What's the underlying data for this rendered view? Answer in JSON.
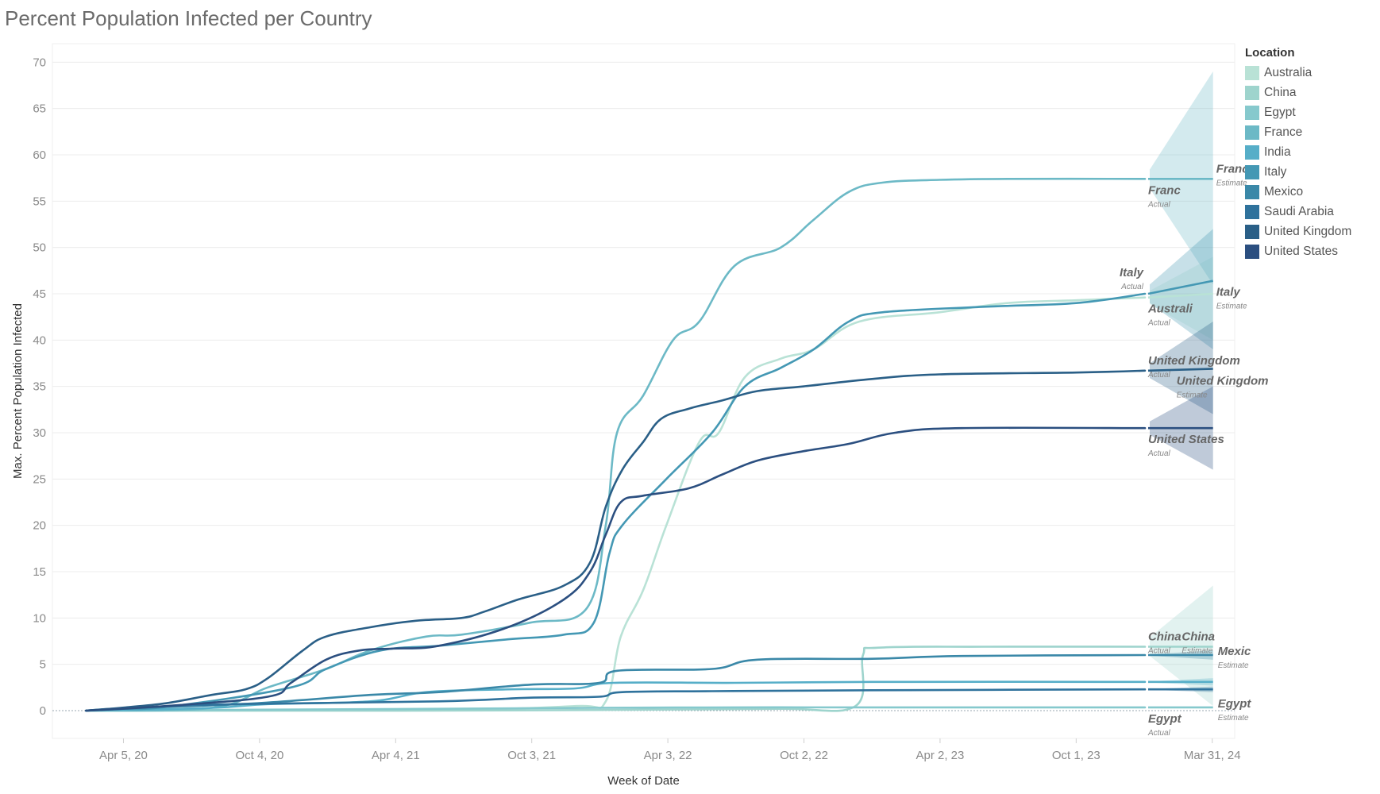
{
  "chart_data": {
    "type": "line",
    "title": "Percent Population Infected per Country",
    "xlabel": "Week of Date",
    "ylabel": "Max. Percent Population Infected",
    "ylim": [
      -3,
      72
    ],
    "y_ticks": [
      0,
      5,
      10,
      15,
      20,
      25,
      30,
      35,
      40,
      45,
      50,
      55,
      60,
      65,
      70
    ],
    "x_range": [
      "2020-01-01",
      "2024-04-30"
    ],
    "x_ticks": [
      {
        "date": "2020-04-05",
        "label": "Apr 5, 20"
      },
      {
        "date": "2020-10-04",
        "label": "Oct 4, 20"
      },
      {
        "date": "2021-04-04",
        "label": "Apr 4, 21"
      },
      {
        "date": "2021-10-03",
        "label": "Oct 3, 21"
      },
      {
        "date": "2022-04-03",
        "label": "Apr 3, 22"
      },
      {
        "date": "2022-10-02",
        "label": "Oct 2, 22"
      },
      {
        "date": "2023-04-02",
        "label": "Apr 2, 23"
      },
      {
        "date": "2023-10-01",
        "label": "Oct 1, 23"
      },
      {
        "date": "2024-03-31",
        "label": "Mar 31, 24"
      }
    ],
    "grid": true,
    "legend": {
      "title": "Location",
      "position": "right",
      "items": [
        {
          "name": "Australia",
          "color": "#b9e2d6"
        },
        {
          "name": "China",
          "color": "#9ed4cd"
        },
        {
          "name": "Egypt",
          "color": "#86c9cd"
        },
        {
          "name": "France",
          "color": "#6cb9c6"
        },
        {
          "name": "India",
          "color": "#56aec8"
        },
        {
          "name": "Italy",
          "color": "#4498b4"
        },
        {
          "name": "Mexico",
          "color": "#3a88a8"
        },
        {
          "name": "Saudi Arabia",
          "color": "#2f729c"
        },
        {
          "name": "United Kingdom",
          "color": "#2a5f87"
        },
        {
          "name": "United States",
          "color": "#2b4f80"
        }
      ]
    },
    "series": [
      {
        "name": "Australia",
        "color": "#b9e2d6",
        "points": [
          [
            "2020-02-15",
            0
          ],
          [
            "2021-06-01",
            0.1
          ],
          [
            "2021-12-01",
            0.5
          ],
          [
            "2022-01-10",
            1
          ],
          [
            "2022-01-30",
            8
          ],
          [
            "2022-03-01",
            13
          ],
          [
            "2022-04-01",
            20
          ],
          [
            "2022-05-15",
            29
          ],
          [
            "2022-06-10",
            30
          ],
          [
            "2022-07-15",
            36
          ],
          [
            "2022-09-01",
            38
          ],
          [
            "2022-10-15",
            39
          ],
          [
            "2022-12-15",
            42
          ],
          [
            "2023-04-01",
            43
          ],
          [
            "2023-07-01",
            44
          ],
          [
            "2023-10-01",
            44.3
          ],
          [
            "2024-01-01",
            44.6
          ]
        ],
        "forecast": [
          45,
          40,
          49
        ]
      },
      {
        "name": "China",
        "color": "#9ed4cd",
        "points": [
          [
            "2020-02-15",
            0
          ],
          [
            "2021-06-01",
            0
          ],
          [
            "2022-03-01",
            0.1
          ],
          [
            "2022-09-01",
            0.2
          ],
          [
            "2022-12-10",
            0.5
          ],
          [
            "2022-12-20",
            6
          ],
          [
            "2023-01-10",
            6.8
          ],
          [
            "2023-06-01",
            6.9
          ],
          [
            "2024-01-01",
            6.9
          ]
        ],
        "forecast": [
          6.9,
          0.5,
          13.5
        ]
      },
      {
        "name": "Egypt",
        "color": "#86c9cd",
        "points": [
          [
            "2020-02-15",
            0
          ],
          [
            "2020-10-01",
            0.1
          ],
          [
            "2021-06-01",
            0.2
          ],
          [
            "2022-01-01",
            0.3
          ],
          [
            "2022-07-01",
            0.35
          ],
          [
            "2023-01-01",
            0.35
          ],
          [
            "2024-01-01",
            0.35
          ]
        ],
        "forecast": [
          0.35,
          0.3,
          0.4
        ]
      },
      {
        "name": "France",
        "color": "#6cb9c6",
        "points": [
          [
            "2020-02-15",
            0
          ],
          [
            "2020-08-01",
            0.3
          ],
          [
            "2020-10-15",
            2.5
          ],
          [
            "2021-01-01",
            4.5
          ],
          [
            "2021-03-01",
            6.5
          ],
          [
            "2021-05-15",
            8
          ],
          [
            "2021-07-01",
            8.2
          ],
          [
            "2021-10-01",
            9.5
          ],
          [
            "2021-12-15",
            11
          ],
          [
            "2022-01-10",
            20
          ],
          [
            "2022-01-25",
            30
          ],
          [
            "2022-03-01",
            34
          ],
          [
            "2022-04-10",
            40
          ],
          [
            "2022-05-15",
            42
          ],
          [
            "2022-07-01",
            48
          ],
          [
            "2022-09-01",
            50
          ],
          [
            "2022-10-15",
            53
          ],
          [
            "2022-12-01",
            56
          ],
          [
            "2023-01-15",
            57
          ],
          [
            "2023-04-01",
            57.3
          ],
          [
            "2023-07-01",
            57.4
          ],
          [
            "2024-01-01",
            57.4
          ]
        ],
        "forecast": [
          57.4,
          46,
          69
        ]
      },
      {
        "name": "India",
        "color": "#56aec8",
        "points": [
          [
            "2020-02-15",
            0
          ],
          [
            "2020-08-01",
            0.3
          ],
          [
            "2020-10-15",
            0.7
          ],
          [
            "2021-03-01",
            1
          ],
          [
            "2021-05-15",
            2
          ],
          [
            "2021-09-01",
            2.3
          ],
          [
            "2021-12-01",
            2.4
          ],
          [
            "2022-01-20",
            3
          ],
          [
            "2022-07-01",
            3
          ],
          [
            "2023-01-01",
            3.1
          ],
          [
            "2024-01-01",
            3.1
          ]
        ],
        "forecast": [
          3.1,
          2.7,
          3.5
        ]
      },
      {
        "name": "Italy",
        "color": "#4498b4",
        "points": [
          [
            "2020-02-15",
            0
          ],
          [
            "2020-03-20",
            0.2
          ],
          [
            "2020-06-01",
            0.4
          ],
          [
            "2020-11-15",
            2.5
          ],
          [
            "2021-01-01",
            4.5
          ],
          [
            "2021-03-15",
            6.5
          ],
          [
            "2021-06-01",
            7
          ],
          [
            "2021-09-01",
            7.7
          ],
          [
            "2021-11-15",
            8.2
          ],
          [
            "2021-12-25",
            9.5
          ],
          [
            "2022-01-15",
            17
          ],
          [
            "2022-02-01",
            20
          ],
          [
            "2022-04-01",
            25
          ],
          [
            "2022-06-01",
            30
          ],
          [
            "2022-07-15",
            35
          ],
          [
            "2022-09-01",
            37
          ],
          [
            "2022-10-15",
            39
          ],
          [
            "2022-12-01",
            42
          ],
          [
            "2023-01-15",
            43
          ],
          [
            "2023-06-01",
            43.6
          ],
          [
            "2023-10-01",
            44
          ],
          [
            "2024-01-01",
            45
          ]
        ],
        "forecast": [
          46.4,
          39,
          52
        ]
      },
      {
        "name": "Mexico",
        "color": "#3a88a8",
        "points": [
          [
            "2020-02-15",
            0
          ],
          [
            "2020-05-01",
            0.3
          ],
          [
            "2020-10-01",
            0.8
          ],
          [
            "2021-03-01",
            1.7
          ],
          [
            "2021-06-01",
            2
          ],
          [
            "2021-10-01",
            2.8
          ],
          [
            "2022-01-01",
            3
          ],
          [
            "2022-01-25",
            4.3
          ],
          [
            "2022-06-01",
            4.5
          ],
          [
            "2022-08-01",
            5.5
          ],
          [
            "2023-01-01",
            5.6
          ],
          [
            "2023-05-01",
            5.9
          ],
          [
            "2024-01-01",
            6
          ]
        ],
        "forecast": [
          6,
          5.5,
          6.5
        ]
      },
      {
        "name": "Saudi Arabia",
        "color": "#2f729c",
        "points": [
          [
            "2020-02-15",
            0
          ],
          [
            "2020-05-15",
            0.4
          ],
          [
            "2020-09-01",
            0.7
          ],
          [
            "2021-06-01",
            1
          ],
          [
            "2021-10-01",
            1.4
          ],
          [
            "2022-01-01",
            1.5
          ],
          [
            "2022-02-01",
            2
          ],
          [
            "2022-06-01",
            2.1
          ],
          [
            "2023-01-01",
            2.2
          ],
          [
            "2024-01-01",
            2.3
          ]
        ],
        "forecast": [
          2.3,
          2.0,
          2.6
        ]
      },
      {
        "name": "United Kingdom",
        "color": "#2a5f87",
        "points": [
          [
            "2020-02-15",
            0
          ],
          [
            "2020-04-01",
            0.3
          ],
          [
            "2020-06-01",
            0.8
          ],
          [
            "2020-08-01",
            1.7
          ],
          [
            "2020-09-15",
            2.3
          ],
          [
            "2020-10-15",
            3.5
          ],
          [
            "2020-12-01",
            6.5
          ],
          [
            "2021-01-01",
            8
          ],
          [
            "2021-03-01",
            9
          ],
          [
            "2021-05-01",
            9.7
          ],
          [
            "2021-07-01",
            10
          ],
          [
            "2021-08-01",
            10.7
          ],
          [
            "2021-09-15",
            12
          ],
          [
            "2021-11-15",
            13.5
          ],
          [
            "2021-12-20",
            16
          ],
          [
            "2022-01-10",
            22
          ],
          [
            "2022-02-01",
            26
          ],
          [
            "2022-03-01",
            29
          ],
          [
            "2022-03-25",
            31.5
          ],
          [
            "2022-05-01",
            32.6
          ],
          [
            "2022-06-15",
            33.5
          ],
          [
            "2022-08-01",
            34.5
          ],
          [
            "2022-10-01",
            35
          ],
          [
            "2023-01-01",
            35.8
          ],
          [
            "2023-04-01",
            36.3
          ],
          [
            "2023-10-01",
            36.5
          ],
          [
            "2024-01-01",
            36.7
          ]
        ],
        "forecast": [
          36.9,
          32,
          42
        ]
      },
      {
        "name": "United States",
        "color": "#2b4f80",
        "points": [
          [
            "2020-02-15",
            0
          ],
          [
            "2020-06-01",
            0.5
          ],
          [
            "2020-10-15",
            1.5
          ],
          [
            "2020-11-15",
            3
          ],
          [
            "2021-01-01",
            5.5
          ],
          [
            "2021-02-15",
            6.5
          ],
          [
            "2021-04-01",
            6.7
          ],
          [
            "2021-06-01",
            7
          ],
          [
            "2021-09-01",
            9
          ],
          [
            "2021-11-15",
            12
          ],
          [
            "2021-12-20",
            15
          ],
          [
            "2022-01-10",
            19
          ],
          [
            "2022-01-30",
            22.5
          ],
          [
            "2022-03-01",
            23.2
          ],
          [
            "2022-05-01",
            24
          ],
          [
            "2022-06-15",
            25.5
          ],
          [
            "2022-08-01",
            27
          ],
          [
            "2022-10-01",
            28
          ],
          [
            "2022-12-01",
            28.8
          ],
          [
            "2023-02-01",
            30
          ],
          [
            "2023-05-01",
            30.5
          ],
          [
            "2024-01-01",
            30.5
          ]
        ],
        "forecast": [
          30.5,
          26,
          35
        ]
      }
    ],
    "forecast_end": "2024-04-01",
    "annotations": [
      {
        "main": "Franc",
        "sub": "Actual",
        "date": "2024-01-01",
        "value": 57.4,
        "pos": "below-right"
      },
      {
        "main": "Franc",
        "sub": "Estimate",
        "date": "2024-04-01",
        "value": 57.4,
        "pos": "above-right"
      },
      {
        "main": "Italy",
        "sub": "Actual",
        "date": "2024-01-01",
        "value": 45,
        "pos": "above-left"
      },
      {
        "main": "Italy",
        "sub": "Estimate",
        "date": "2024-04-01",
        "value": 46.4,
        "pos": "below-right"
      },
      {
        "main": "Australi",
        "sub": "Actual",
        "date": "2024-01-01",
        "value": 44.6,
        "pos": "below-right"
      },
      {
        "main": "United Kingdom",
        "sub": "Actual",
        "date": "2024-01-01",
        "value": 36.7,
        "pos": "above-right"
      },
      {
        "main": "United Kingdom",
        "sub": "Estimate",
        "date": "2024-04-01",
        "value": 36.9,
        "pos": "below-center"
      },
      {
        "main": "United States",
        "sub": "Actual",
        "date": "2024-01-01",
        "value": 30.5,
        "pos": "below-right"
      },
      {
        "main": "China",
        "sub": "Actual",
        "date": "2024-01-01",
        "value": 6.9,
        "pos": "above-right"
      },
      {
        "main": "China",
        "sub": "Estimate",
        "date": "2024-02-15",
        "value": 6.9,
        "pos": "above-right"
      },
      {
        "main": "Mexic",
        "sub": "Estimate",
        "date": "2024-04-01",
        "value": 6,
        "pos": "right"
      },
      {
        "main": "Egypt",
        "sub": "Estimate",
        "date": "2024-04-01",
        "value": 0.35,
        "pos": "right"
      },
      {
        "main": "Egypt",
        "sub": "Actual",
        "date": "2024-01-01",
        "value": 0.35,
        "pos": "below-right"
      }
    ]
  }
}
